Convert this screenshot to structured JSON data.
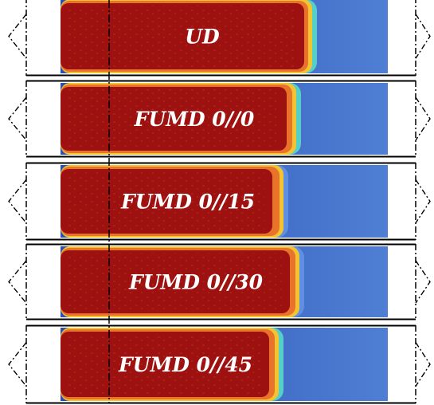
{
  "figure": {
    "panels": [
      {
        "label": "UD"
      },
      {
        "label": "FUMD 0//0"
      },
      {
        "label": "FUMD 0//15"
      },
      {
        "label": "FUMD 0//30"
      },
      {
        "label": "FUMD 0//45"
      }
    ],
    "colors": {
      "saturated": "#9e1111",
      "unsaturated": "#3461bf",
      "unsaturated_light": "#5f8fe0",
      "front_yellow": "#f4c430",
      "front_orange": "#e9732a",
      "front_cyan": "#55d0c8",
      "frame": "#000000",
      "label": "#ffffff"
    }
  }
}
